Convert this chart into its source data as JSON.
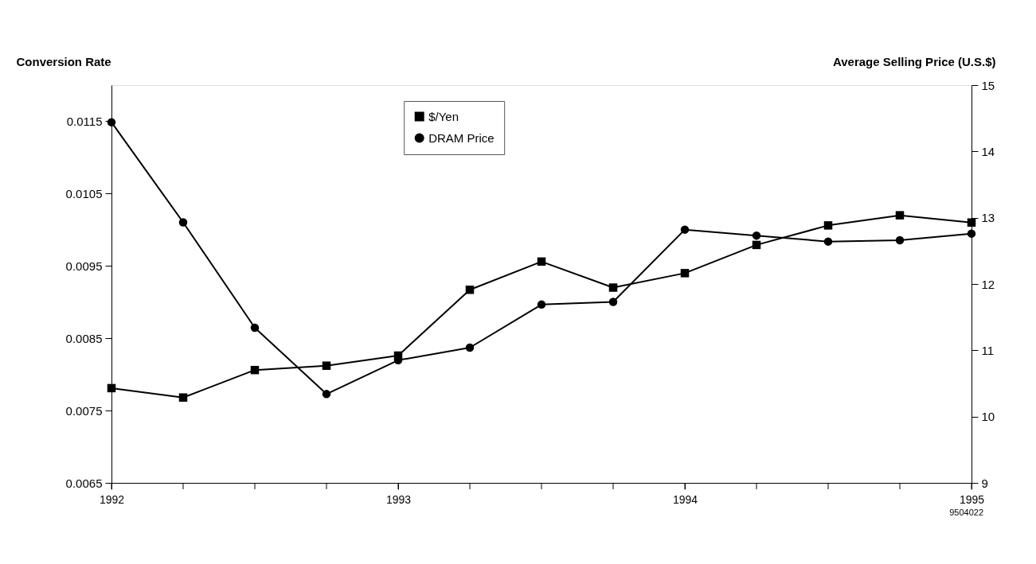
{
  "chart_data": {
    "type": "line",
    "ylabel": "Conversion Rate",
    "y2label": "Average Selling Price (U.S.$)",
    "x": [
      1992,
      1992.25,
      1992.5,
      1992.75,
      1993,
      1993.25,
      1993.5,
      1993.75,
      1994,
      1994.25,
      1994.5,
      1994.75,
      1995
    ],
    "series": [
      {
        "name": "$/Yen",
        "color": "#000000",
        "marker": "square",
        "values": [
          0.00781,
          0.00768,
          0.00806,
          0.00812,
          0.00826,
          0.00917,
          0.00956,
          0.0092,
          0.0094,
          0.00979,
          0.01006,
          0.0102,
          0.0101
        ]
      },
      {
        "name": "DRAM Price",
        "color": "#000000",
        "marker": "circle",
        "axis": "y2",
        "values": [
          14.44,
          12.93,
          11.34,
          10.34,
          10.85,
          11.04,
          11.69,
          11.73,
          12.82,
          12.73,
          12.64,
          12.66,
          12.76
        ]
      }
    ],
    "xlim": [
      1992,
      1995
    ],
    "xticks": [
      1992,
      {
        "value": 1992.25,
        "label": null
      },
      {
        "value": 1992.5,
        "label": null
      },
      {
        "value": 1992.75,
        "label": null
      },
      1993,
      {
        "value": 1993.25,
        "label": null
      },
      {
        "value": 1993.5,
        "label": null
      },
      {
        "value": 1993.75,
        "label": null
      },
      1994,
      {
        "value": 1994.25,
        "label": null
      },
      {
        "value": 1994.5,
        "label": null
      },
      {
        "value": 1994.75,
        "label": null
      },
      1995
    ],
    "ylim": [
      0.0065,
      0.012
    ],
    "yticks": [
      0.0065,
      0.0075,
      0.0085,
      0.0095,
      0.0105,
      0.0115
    ],
    "y2lim": [
      9,
      15
    ],
    "y2ticks": [
      9,
      10,
      11,
      12,
      13,
      14,
      15
    ],
    "grid": false,
    "legend": "top",
    "line_style": "solid",
    "annotations": [
      "9504022"
    ]
  }
}
